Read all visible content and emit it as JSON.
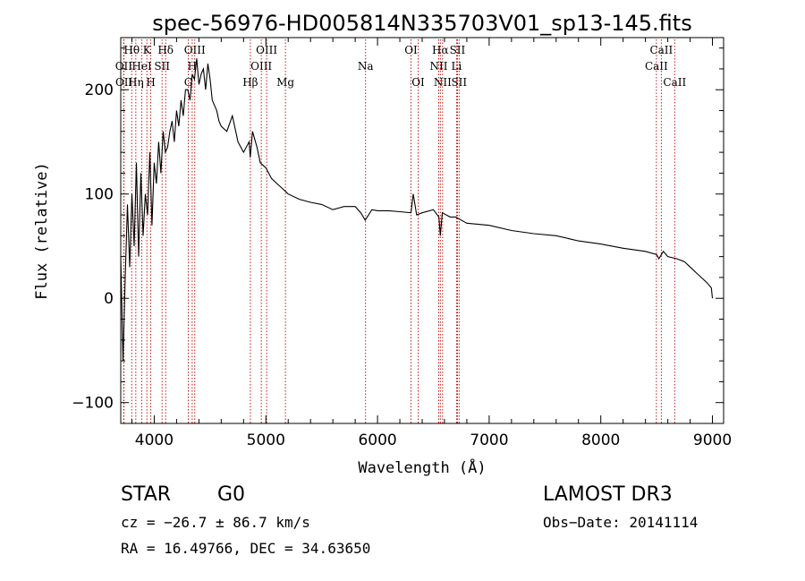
{
  "chart_data": {
    "type": "line",
    "title": "spec-56976-HD005814N335703V01_sp13-145.fits",
    "xlabel": "Wavelength (Å)",
    "ylabel": "Flux (relative)",
    "xlim": [
      3700,
      9100
    ],
    "ylim": [
      -120,
      250
    ],
    "xticks": [
      4000,
      5000,
      6000,
      7000,
      8000,
      9000
    ],
    "yticks": [
      -100,
      0,
      100,
      200
    ],
    "series": [
      {
        "name": "flux",
        "x": [
          3700,
          3720,
          3740,
          3760,
          3780,
          3800,
          3820,
          3840,
          3860,
          3880,
          3900,
          3920,
          3940,
          3960,
          3980,
          4000,
          4020,
          4040,
          4060,
          4080,
          4100,
          4120,
          4140,
          4160,
          4180,
          4200,
          4220,
          4240,
          4260,
          4280,
          4300,
          4320,
          4340,
          4360,
          4380,
          4400,
          4420,
          4440,
          4460,
          4480,
          4500,
          4520,
          4540,
          4560,
          4580,
          4600,
          4650,
          4700,
          4750,
          4800,
          4850,
          4860,
          4880,
          4920,
          4950,
          5000,
          5050,
          5100,
          5150,
          5200,
          5300,
          5400,
          5500,
          5600,
          5700,
          5800,
          5850,
          5890,
          5950,
          6000,
          6100,
          6200,
          6300,
          6320,
          6350,
          6400,
          6500,
          6550,
          6563,
          6580,
          6650,
          6700,
          6800,
          7000,
          7200,
          7400,
          7600,
          7800,
          8000,
          8200,
          8400,
          8500,
          8520,
          8560,
          8600,
          8680,
          8750,
          8800,
          8850,
          8900,
          8950,
          8990,
          9000
        ],
        "values": [
          40,
          -60,
          20,
          90,
          30,
          100,
          50,
          130,
          40,
          120,
          60,
          100,
          80,
          140,
          70,
          130,
          110,
          150,
          120,
          160,
          140,
          145,
          160,
          170,
          150,
          180,
          165,
          190,
          175,
          200,
          200,
          190,
          215,
          210,
          230,
          205,
          215,
          220,
          200,
          225,
          210,
          190,
          185,
          180,
          170,
          165,
          160,
          175,
          150,
          140,
          150,
          135,
          160,
          145,
          130,
          125,
          115,
          110,
          105,
          100,
          95,
          92,
          90,
          85,
          88,
          88,
          82,
          75,
          85,
          84,
          84,
          83,
          82,
          100,
          80,
          82,
          85,
          78,
          60,
          82,
          78,
          78,
          72,
          70,
          65,
          62,
          60,
          55,
          52,
          48,
          45,
          42,
          38,
          45,
          40,
          38,
          35,
          30,
          25,
          20,
          15,
          10,
          0
        ]
      }
    ],
    "lines": [
      {
        "name": "Hθ",
        "x": 3798,
        "row": 1
      },
      {
        "name": "OII",
        "x": 3727,
        "row": 2
      },
      {
        "name": "OII",
        "x": 3729,
        "row": 3
      },
      {
        "name": "K",
        "x": 3934,
        "row": 1
      },
      {
        "name": "HeI",
        "x": 3889,
        "row": 2
      },
      {
        "name": "Hη",
        "x": 3835,
        "row": 3
      },
      {
        "name": "H",
        "x": 3969,
        "row": 3
      },
      {
        "name": "Hδ",
        "x": 4102,
        "row": 1
      },
      {
        "name": "SII",
        "x": 4070,
        "row": 2
      },
      {
        "name": "OIII",
        "x": 4363,
        "row": 1
      },
      {
        "name": "H",
        "x": 4340,
        "row": 2
      },
      {
        "name": "G",
        "x": 4305,
        "row": 3
      },
      {
        "name": "Hβ",
        "x": 4861,
        "row": 3
      },
      {
        "name": "OIII",
        "x": 5007,
        "row": 1
      },
      {
        "name": "OIII",
        "x": 4959,
        "row": 2
      },
      {
        "name": "Mg",
        "x": 5175,
        "row": 3
      },
      {
        "name": "Na",
        "x": 5893,
        "row": 2
      },
      {
        "name": "OI",
        "x": 6300,
        "row": 1
      },
      {
        "name": "OI",
        "x": 6364,
        "row": 3
      },
      {
        "name": "Hα",
        "x": 6563,
        "row": 1
      },
      {
        "name": "SII",
        "x": 6716,
        "row": 1
      },
      {
        "name": "NII",
        "x": 6548,
        "row": 2
      },
      {
        "name": "Li",
        "x": 6708,
        "row": 2
      },
      {
        "name": "NII",
        "x": 6583,
        "row": 3
      },
      {
        "name": "SII",
        "x": 6731,
        "row": 3
      },
      {
        "name": "CaII",
        "x": 8542,
        "row": 1
      },
      {
        "name": "CaII",
        "x": 8498,
        "row": 2
      },
      {
        "name": "CaII",
        "x": 8662,
        "row": 3
      }
    ]
  },
  "info": {
    "class_label": "STAR",
    "subclass": "G0",
    "survey": "LAMOST DR3",
    "cz": "cz = −26.7 ± 86.7 km/s",
    "obs_date": "Obs−Date: 20141114",
    "coords": "RA =  16.49766, DEC =  34.63650"
  }
}
